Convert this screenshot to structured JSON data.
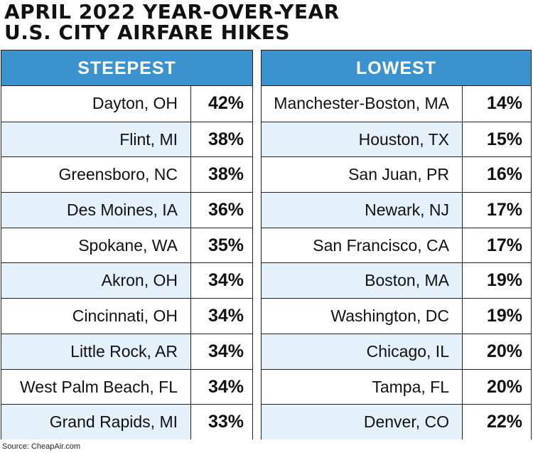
{
  "title": {
    "line1": "APRIL 2022 YEAR-OVER-YEAR",
    "line2": "U.S. CITY AIRFARE HIKES"
  },
  "source": "Source: CheapAir.com",
  "colors": {
    "header": "#3a93cf",
    "stripe": "#e4f0fa",
    "border": "#222222"
  },
  "chart_data": {
    "type": "table",
    "title": "APRIL 2022 YEAR-OVER-YEAR U.S. CITY AIRFARE HIKES",
    "tables": [
      {
        "header": "STEEPEST",
        "rows": [
          {
            "city": "Dayton, OH",
            "pct": "42%"
          },
          {
            "city": "Flint, MI",
            "pct": "38%"
          },
          {
            "city": "Greensboro, NC",
            "pct": "38%"
          },
          {
            "city": "Des Moines, IA",
            "pct": "36%"
          },
          {
            "city": "Spokane, WA",
            "pct": "35%"
          },
          {
            "city": "Akron, OH",
            "pct": "34%"
          },
          {
            "city": "Cincinnati, OH",
            "pct": "34%"
          },
          {
            "city": "Little Rock, AR",
            "pct": "34%"
          },
          {
            "city": "West Palm Beach, FL",
            "pct": "34%"
          },
          {
            "city": "Grand Rapids, MI",
            "pct": "33%"
          }
        ]
      },
      {
        "header": "LOWEST",
        "rows": [
          {
            "city": "Manchester-Boston, MA",
            "pct": "14%"
          },
          {
            "city": "Houston, TX",
            "pct": "15%"
          },
          {
            "city": "San Juan, PR",
            "pct": "16%"
          },
          {
            "city": "Newark, NJ",
            "pct": "17%"
          },
          {
            "city": "San Francisco, CA",
            "pct": "17%"
          },
          {
            "city": "Boston, MA",
            "pct": "19%"
          },
          {
            "city": "Washington, DC",
            "pct": "19%"
          },
          {
            "city": "Chicago, IL",
            "pct": "20%"
          },
          {
            "city": "Tampa, FL",
            "pct": "20%"
          },
          {
            "city": "Denver, CO",
            "pct": "22%"
          }
        ]
      }
    ]
  }
}
